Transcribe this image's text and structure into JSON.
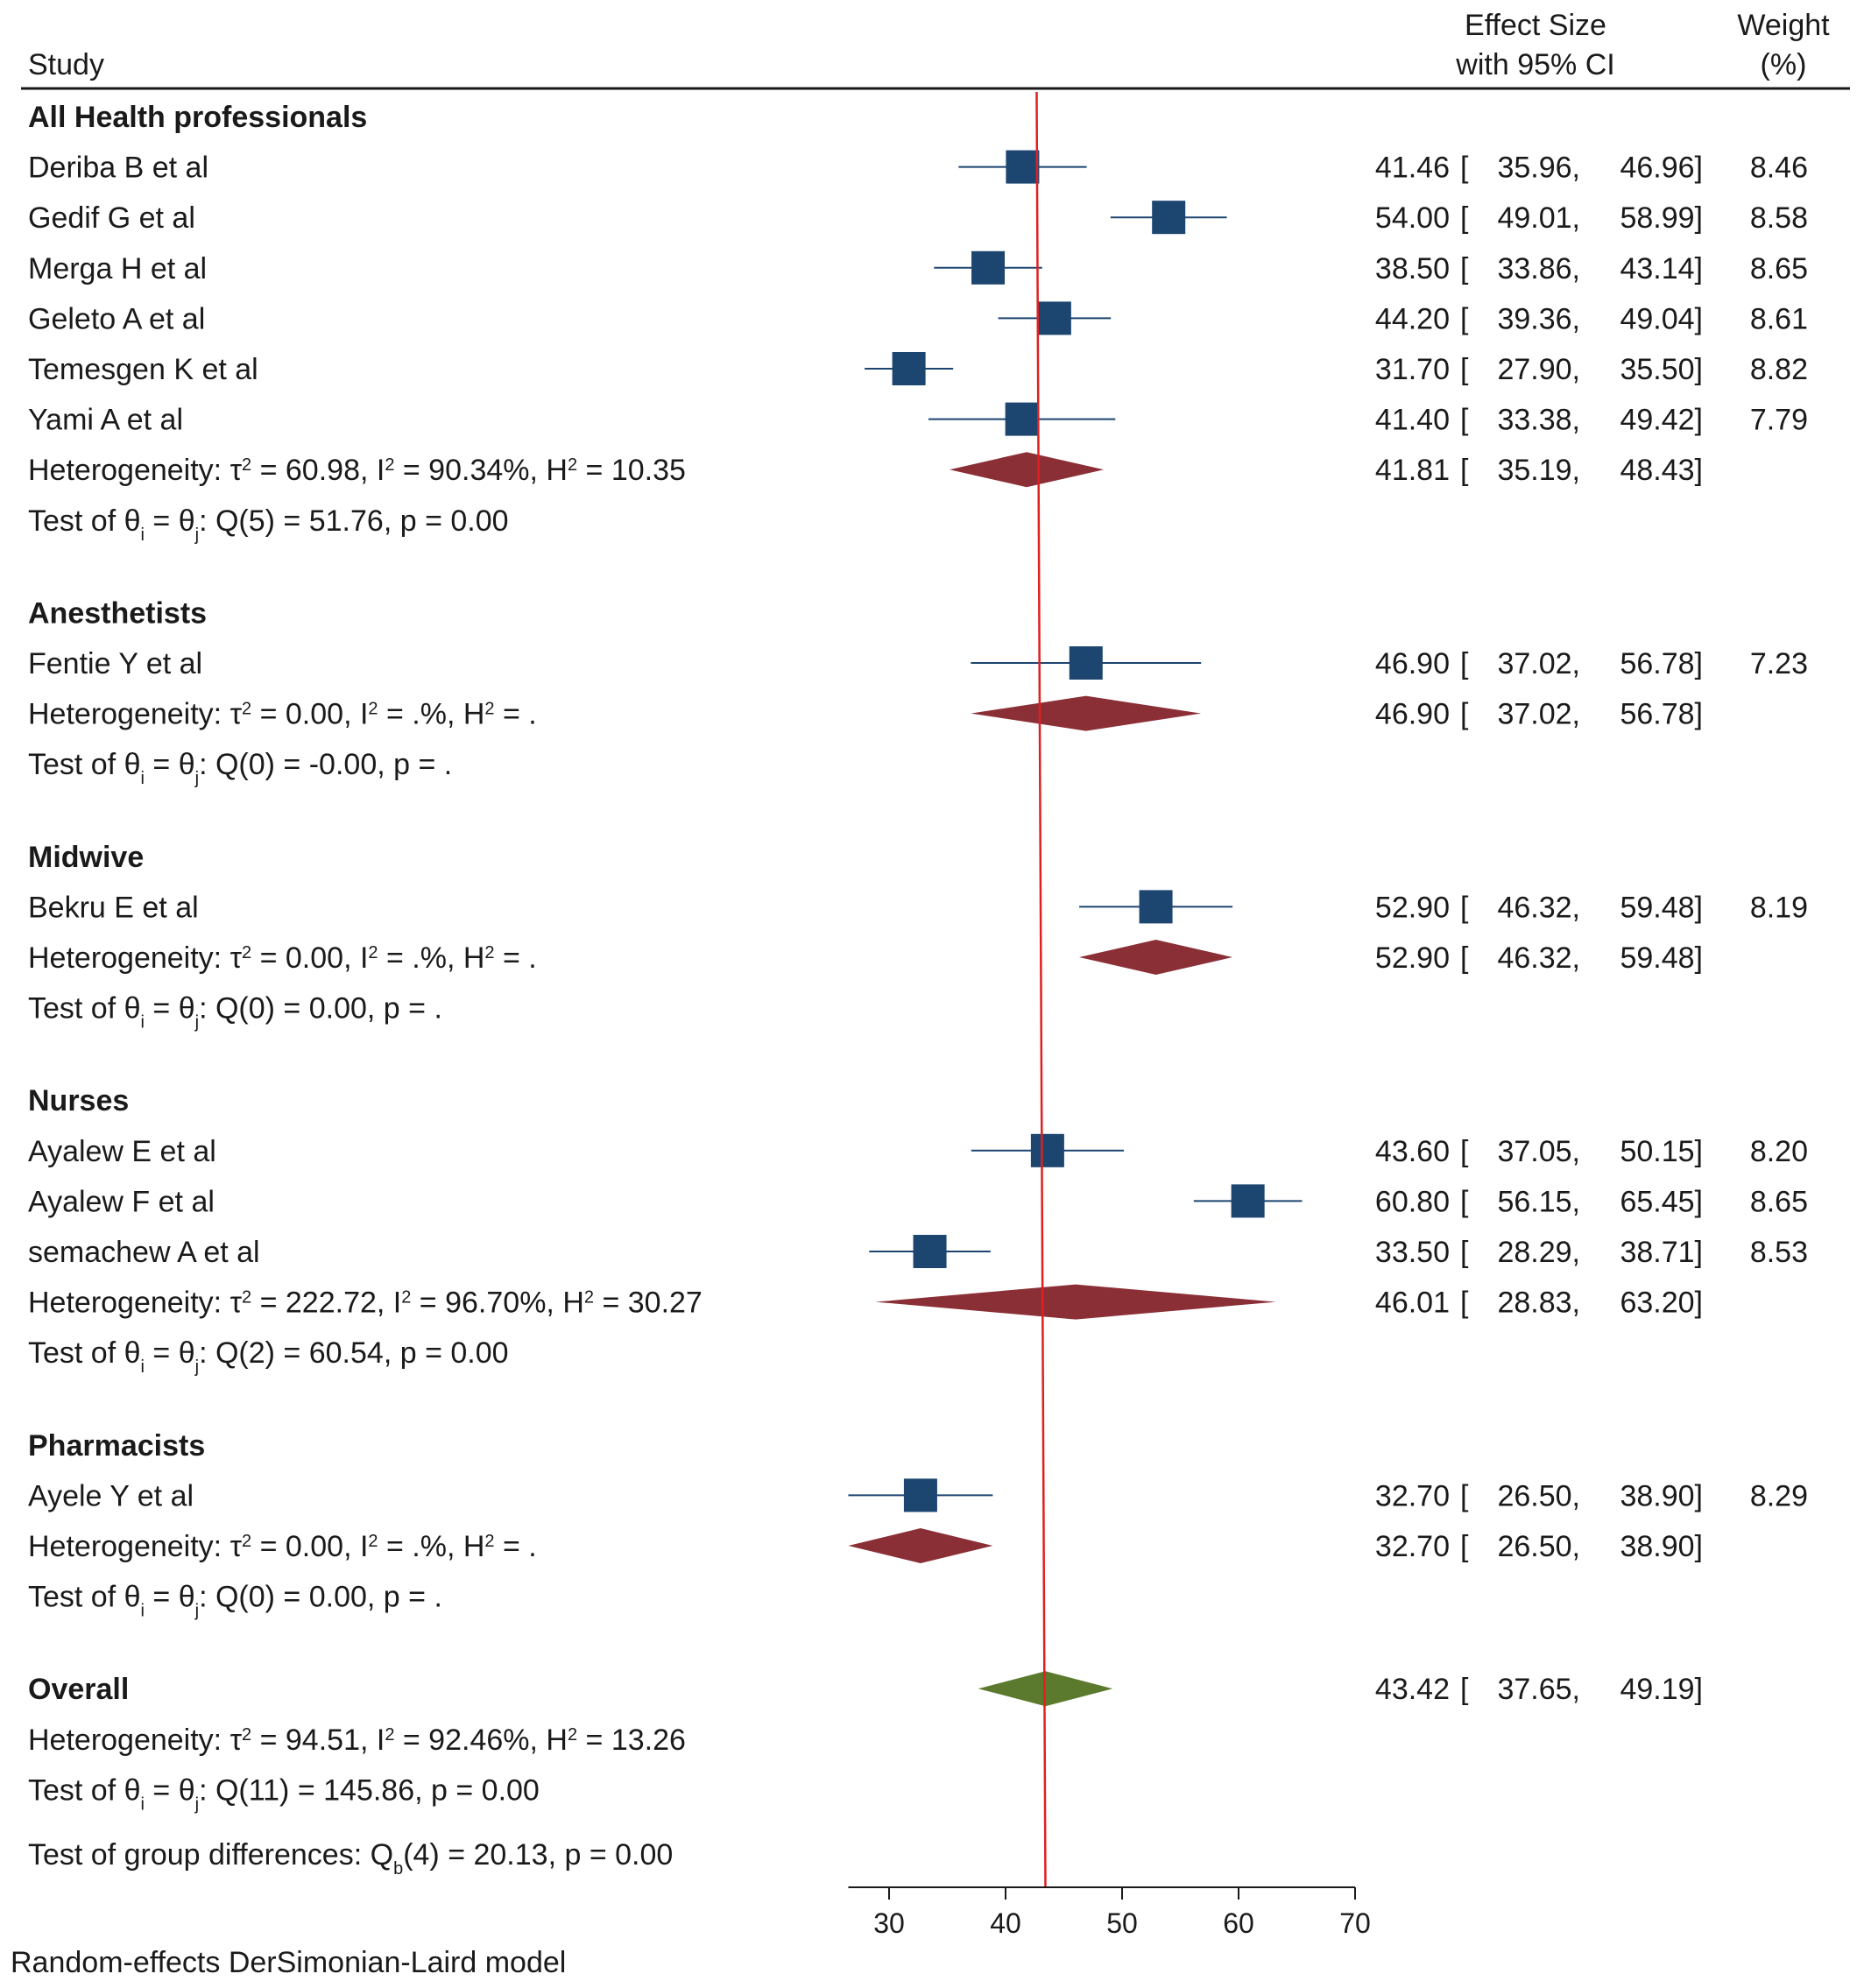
{
  "chart_data": {
    "type": "forest",
    "headers": {
      "study": "Study",
      "effect_size": [
        "Effect Size",
        "with 95% CI"
      ],
      "weight": [
        "Weight",
        "(%)"
      ]
    },
    "groups": [
      {
        "name": "All Health professionals",
        "studies": [
          {
            "label": "Deriba B et al",
            "es": 41.46,
            "lo": 35.96,
            "hi": 46.96,
            "weight": 8.46
          },
          {
            "label": "Gedif G et al",
            "es": 54.0,
            "lo": 49.01,
            "hi": 58.99,
            "weight": 8.58
          },
          {
            "label": "Merga H et al",
            "es": 38.5,
            "lo": 33.86,
            "hi": 43.14,
            "weight": 8.65
          },
          {
            "label": "Geleto A et al",
            "es": 44.2,
            "lo": 39.36,
            "hi": 49.04,
            "weight": 8.61
          },
          {
            "label": "Temesgen K et al",
            "es": 31.7,
            "lo": 27.9,
            "hi": 35.5,
            "weight": 8.82
          },
          {
            "label": "Yami A et al",
            "es": 41.4,
            "lo": 33.38,
            "hi": 49.42,
            "weight": 7.79
          }
        ],
        "subtotal": {
          "es": 41.81,
          "lo": 35.19,
          "hi": 48.43
        },
        "heterogeneity": {
          "tau2": "60.98",
          "i2": "90.34%",
          "h2": "10.35"
        },
        "test": {
          "q": "Q(5) = 51.76",
          "p": "p = 0.00"
        }
      },
      {
        "name": "Anesthetists",
        "studies": [
          {
            "label": "Fentie Y et al",
            "es": 46.9,
            "lo": 37.02,
            "hi": 56.78,
            "weight": 7.23
          }
        ],
        "subtotal": {
          "es": 46.9,
          "lo": 37.02,
          "hi": 56.78
        },
        "heterogeneity": {
          "tau2": "0.00",
          "i2": ".%",
          "h2": "."
        },
        "test": {
          "q": "Q(0) = -0.00",
          "p": "p = ."
        }
      },
      {
        "name": "Midwive",
        "studies": [
          {
            "label": "Bekru E et al",
            "es": 52.9,
            "lo": 46.32,
            "hi": 59.48,
            "weight": 8.19
          }
        ],
        "subtotal": {
          "es": 52.9,
          "lo": 46.32,
          "hi": 59.48
        },
        "heterogeneity": {
          "tau2": "0.00",
          "i2": ".%",
          "h2": "."
        },
        "test": {
          "q": "Q(0) = 0.00",
          "p": "p = ."
        }
      },
      {
        "name": "Nurses",
        "studies": [
          {
            "label": "Ayalew E et al",
            "es": 43.6,
            "lo": 37.05,
            "hi": 50.15,
            "weight": 8.2
          },
          {
            "label": "Ayalew F et al",
            "es": 60.8,
            "lo": 56.15,
            "hi": 65.45,
            "weight": 8.65
          },
          {
            "label": "semachew A et al",
            "es": 33.5,
            "lo": 28.29,
            "hi": 38.71,
            "weight": 8.53
          }
        ],
        "subtotal": {
          "es": 46.01,
          "lo": 28.83,
          "hi": 63.2
        },
        "heterogeneity": {
          "tau2": "222.72",
          "i2": "96.70%",
          "h2": "30.27"
        },
        "test": {
          "q": "Q(2) = 60.54",
          "p": "p = 0.00"
        }
      },
      {
        "name": "Pharmacists",
        "studies": [
          {
            "label": "Ayele Y et al",
            "es": 32.7,
            "lo": 26.5,
            "hi": 38.9,
            "weight": 8.29
          }
        ],
        "subtotal": {
          "es": 32.7,
          "lo": 26.5,
          "hi": 38.9
        },
        "heterogeneity": {
          "tau2": "0.00",
          "i2": ".%",
          "h2": "."
        },
        "test": {
          "q": "Q(0) = 0.00",
          "p": "p = ."
        }
      }
    ],
    "overall": {
      "label": "Overall",
      "es": 43.42,
      "lo": 37.65,
      "hi": 49.19,
      "heterogeneity": {
        "tau2": "94.51",
        "i2": "92.46%",
        "h2": "13.26"
      },
      "test": {
        "q": "Q(11) = 145.86",
        "p": "p = 0.00"
      },
      "group_test": "Test of group differences: Qₕ(4) = 20.13, p = 0.00"
    },
    "x_axis": {
      "ticks": [
        30,
        40,
        50,
        60,
        70
      ],
      "xlim": [
        26.5,
        70
      ]
    },
    "reference_line": 43.42,
    "footnote": "Random-effects DerSimonian-Laird model",
    "colors": {
      "study_marker": "#1c4570",
      "subgroup_diamond": "#8b2f36",
      "overall_diamond": "#5c7a2e",
      "reference_line": "#e02020",
      "text": "#1a1a1a"
    }
  }
}
